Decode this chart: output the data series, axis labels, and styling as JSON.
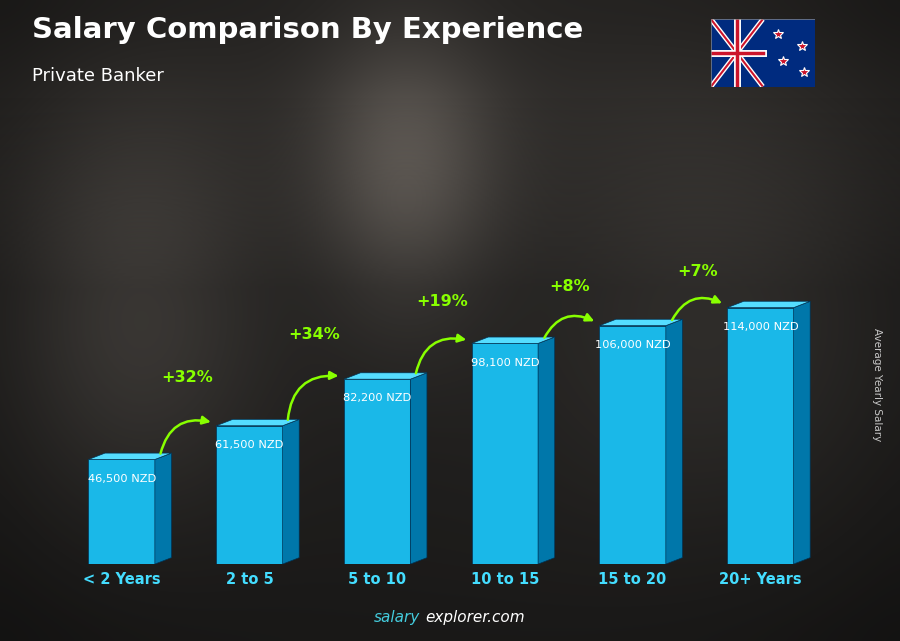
{
  "categories": [
    "< 2 Years",
    "2 to 5",
    "5 to 10",
    "10 to 15",
    "15 to 20",
    "20+ Years"
  ],
  "values": [
    46500,
    61500,
    82200,
    98100,
    106000,
    114000
  ],
  "value_labels": [
    "46,500 NZD",
    "61,500 NZD",
    "82,200 NZD",
    "98,100 NZD",
    "106,000 NZD",
    "114,000 NZD"
  ],
  "pct_changes": [
    null,
    "+32%",
    "+34%",
    "+19%",
    "+8%",
    "+7%"
  ],
  "title": "Salary Comparison By Experience",
  "subtitle": "Private Banker",
  "ylabel": "Average Yearly Salary",
  "watermark": "salaryexplorer.com",
  "bar_face_color": "#1ab8e8",
  "bar_top_color": "#55ddff",
  "bar_side_color": "#0077aa",
  "pct_color": "#88ff00",
  "tick_color": "#44ddff",
  "label_color": "#ffffff",
  "title_color": "#ffffff",
  "subtitle_color": "#ffffff",
  "watermark_cyan": "#44ccdd",
  "watermark_white": "#ffffff",
  "bg_dark": "#1a1612",
  "fig_width": 9.0,
  "fig_height": 6.41,
  "dpi": 100
}
